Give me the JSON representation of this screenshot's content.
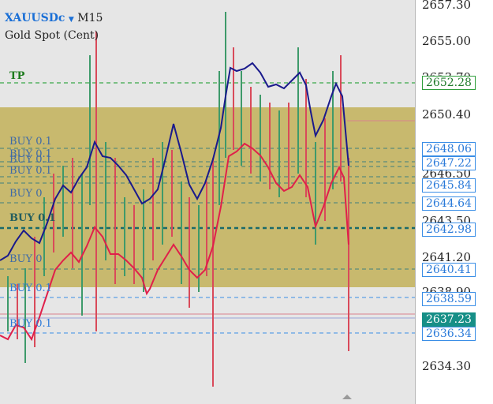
{
  "header": {
    "symbol": "XAUUSDc",
    "timeframe": "M15",
    "description": "Gold Spot (Cent)",
    "dropdown_icon": "caret-down-icon"
  },
  "colors": {
    "background": "#e6e6e6",
    "zone": "#c8b96e",
    "tp_line": "#3aa84a",
    "buy_line": "#3e7f7f",
    "buy_line_alt": "#3a8ee6",
    "candle_up": "#3e9a6a",
    "candle_down": "#d94a5a",
    "ma_fast": "#1a1a8c",
    "ma_slow": "#e0204a",
    "bid_tag": "#168f87"
  },
  "overlay_labels": {
    "tp": "TP",
    "buys": [
      {
        "text": "BUY 0.1"
      },
      {
        "text": "BUY 0.1"
      },
      {
        "text": "BUY 0.1"
      },
      {
        "text": "BUY 0.1"
      },
      {
        "text": "BUY 0"
      },
      {
        "text": "BUY 0.1"
      },
      {
        "text": "BUY 0"
      },
      {
        "text": "BUY 0.1"
      },
      {
        "text": "BUY 0.1"
      }
    ]
  },
  "price_axis": {
    "ticks": [
      "2657.30",
      "2655.00",
      "2650.40",
      "2641.20",
      "2634.30"
    ],
    "partial_ticks": [
      "2653.70",
      "2646.50",
      "2643.50",
      "2638.90"
    ],
    "tags": {
      "tp": "2652.28",
      "levels": [
        "2648.06",
        "2647.22",
        "2645.84",
        "2644.64",
        "2642.98",
        "2640.41",
        "2638.59",
        "2636.34"
      ],
      "bid": "2637.23"
    }
  }
}
